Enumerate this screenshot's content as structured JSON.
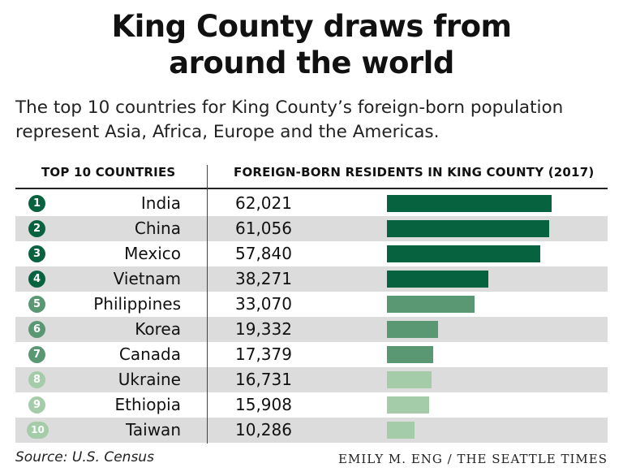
{
  "title_line1": "King County draws from",
  "title_line2": "around the world",
  "subtitle_line1": "The top 10 countries for King County’s foreign-born population",
  "subtitle_line2": "represent Asia, Africa, Europe and the Americas.",
  "header_left": "TOP 10 COUNTRIES",
  "header_right": "FOREIGN-BORN RESIDENTS IN KING COUNTY (2017)",
  "source": "Source: U.S. Census",
  "credit": "EMILY M. ENG / THE SEATTLE TIMES",
  "chart_data": {
    "type": "bar",
    "orientation": "horizontal",
    "categories": [
      "India",
      "China",
      "Mexico",
      "Vietnam",
      "Philippines",
      "Korea",
      "Canada",
      "Ukraine",
      "Ethiopia",
      "Taiwan"
    ],
    "ranks": [
      "1",
      "2",
      "3",
      "4",
      "5",
      "6",
      "7",
      "8",
      "9",
      "10"
    ],
    "values": [
      62021,
      61056,
      57840,
      38271,
      33070,
      19332,
      17379,
      16731,
      15908,
      10286
    ],
    "value_labels": [
      "62,021",
      "61,056",
      "57,840",
      "38,271",
      "33,070",
      "19,332",
      "17,379",
      "16,731",
      "15,908",
      "10,286"
    ],
    "colors": [
      "#07633f",
      "#07633f",
      "#07633f",
      "#07633f",
      "#5a9773",
      "#5a9773",
      "#5a9773",
      "#a4cca8",
      "#a4cca8",
      "#a4cca8"
    ],
    "title": "King County draws from around the world",
    "xlabel": "FOREIGN-BORN RESIDENTS IN KING COUNTY (2017)",
    "ylabel": "TOP 10 COUNTRIES"
  }
}
